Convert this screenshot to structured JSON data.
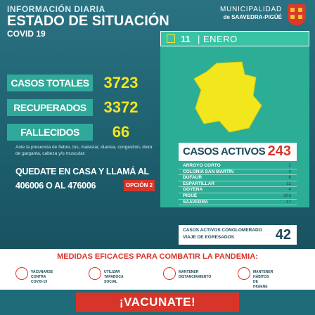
{
  "header": {
    "superline": "INFORMACIÓN DIARIA",
    "title": "ESTADO DE SITUACIÓN",
    "subtitle": "COVID 19",
    "logo_line1": "MUNICIPALIDAD",
    "logo_line2": "de SAAVEDRA·PIGÜÉ"
  },
  "date": {
    "day": "11",
    "separator": "|",
    "month": "ENERO"
  },
  "stats": [
    {
      "label": "CASOS TOTALES",
      "value": "3723"
    },
    {
      "label": "RECUPERADOS",
      "value": "3372"
    },
    {
      "label": "FALLECIDOS",
      "value": "66"
    }
  ],
  "message": {
    "advice": "Ante la presencia de fiebre, tos, malestar, diarrea, congestión, dolor de garganta, cabeza y/o muscular:",
    "cta_line1": "QUEDATE EN CASA Y LLAMÁ AL",
    "cta_line2": "406006 O AL 476006",
    "option": "OPCIÓN 2"
  },
  "active": {
    "label": "CASOS ACTIVOS",
    "value": "243",
    "locations": [
      {
        "name": "ARROYO CORTO",
        "value": "2"
      },
      {
        "name": "COLONIA SAN MARTÍN",
        "value": "0"
      },
      {
        "name": "DUFAUR",
        "value": "6"
      },
      {
        "name": "ESPARTILLAR",
        "value": "11"
      },
      {
        "name": "GOYENA",
        "value": "4"
      },
      {
        "name": "PIGÜÉ",
        "value": "203"
      },
      {
        "name": "SAAVEDRA",
        "value": "17"
      }
    ]
  },
  "cluster": {
    "line1": "CASOS ACTIVOS CONGLOMERADO",
    "line2": "VIAJE DE EGRESADOS",
    "value": "42"
  },
  "measures": {
    "title": "MEDIDAS EFICACES PARA COMBATIR LA PANDEMIA:",
    "items": [
      {
        "icon": "syringe-icon",
        "line1": "VACUNARSE",
        "line2": "CONTRA COVID-19"
      },
      {
        "icon": "mask-icon",
        "line1": "UTILIZAR",
        "line2": "TAPABOCA SOCIAL"
      },
      {
        "icon": "distance-icon",
        "line1": "MANTENER",
        "line2": "DISTANCIAMIENTO"
      },
      {
        "icon": "hygiene-icon",
        "line1": "MANTENER HÁBITOS",
        "line2": "DE HIGIENE"
      }
    ]
  },
  "footer": {
    "cta": "¡VACUNATE!"
  },
  "colors": {
    "teal_panel": "#2cae96",
    "stat_label_bg": "#2fa99a",
    "stat_value": "#f2e61d",
    "accent_red": "#d8352a",
    "dark_text": "#1b4a57"
  }
}
